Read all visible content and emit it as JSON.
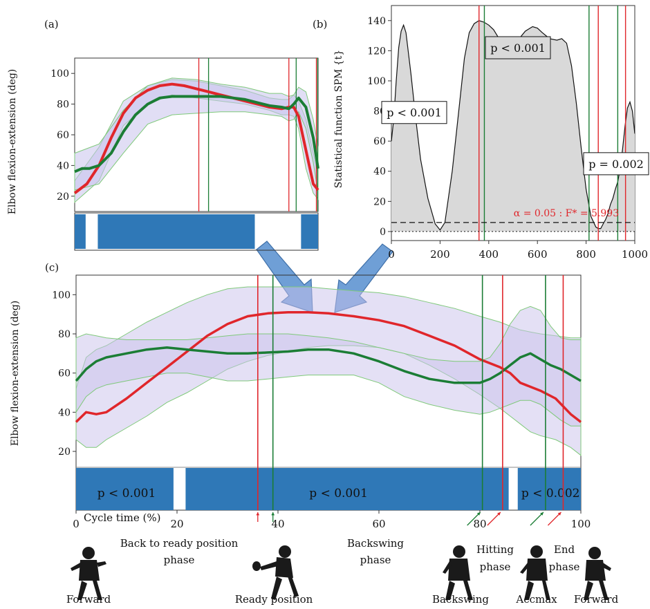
{
  "panel_labels": {
    "a": "(a)",
    "b": "(b)",
    "c": "(c)"
  },
  "colors": {
    "red": "#e0262b",
    "green": "#1b7d35",
    "band": "#c9c2ec",
    "band_stroke": "#7fc97a",
    "bar_blue": "#2f78b7",
    "spm_fill": "#d9d9d9",
    "arrow": "#6f9fd6"
  },
  "chart_data": [
    {
      "id": "a",
      "type": "line",
      "ylabel": "Elbow flexion-extension (deg)",
      "xlim": [
        0,
        100
      ],
      "ylim": [
        10,
        110
      ],
      "yticks": [
        20,
        40,
        60,
        80,
        100
      ],
      "grid": false,
      "series": [
        {
          "color_key": "red",
          "x": [
            0,
            5,
            10,
            15,
            20,
            25,
            30,
            35,
            40,
            45,
            50,
            55,
            60,
            65,
            70,
            75,
            80,
            85,
            88,
            90,
            92,
            95,
            98,
            100
          ],
          "y": [
            22,
            28,
            40,
            58,
            74,
            84,
            89,
            92,
            93,
            92,
            90,
            88,
            86,
            84,
            82,
            80,
            78,
            77,
            78,
            78,
            72,
            50,
            28,
            24
          ]
        },
        {
          "color_key": "green",
          "x": [
            0,
            3,
            6,
            10,
            15,
            20,
            25,
            30,
            35,
            40,
            45,
            50,
            55,
            60,
            65,
            70,
            75,
            80,
            85,
            88,
            90,
            92,
            95,
            98,
            100
          ],
          "y": [
            36,
            38,
            38,
            40,
            48,
            62,
            73,
            80,
            84,
            85,
            85,
            85,
            85,
            85,
            84,
            83,
            81,
            79,
            78,
            77,
            80,
            84,
            78,
            58,
            38
          ]
        }
      ],
      "bands": [
        {
          "color_key": "red",
          "x": [
            0,
            10,
            20,
            30,
            40,
            50,
            60,
            70,
            80,
            85,
            88,
            90,
            92,
            95,
            98,
            100
          ],
          "upper": [
            30,
            52,
            82,
            92,
            96,
            95,
            92,
            89,
            84,
            83,
            83,
            86,
            82,
            70,
            48,
            34
          ],
          "lower": [
            16,
            30,
            66,
            80,
            86,
            84,
            82,
            80,
            76,
            73,
            73,
            72,
            64,
            38,
            22,
            18
          ]
        },
        {
          "color_key": "green",
          "x": [
            0,
            10,
            20,
            30,
            40,
            50,
            60,
            70,
            80,
            85,
            88,
            90,
            92,
            95,
            98,
            100
          ],
          "upper": [
            48,
            54,
            76,
            92,
            97,
            96,
            93,
            91,
            87,
            87,
            85,
            86,
            91,
            88,
            70,
            52
          ],
          "lower": [
            24,
            28,
            48,
            67,
            73,
            74,
            75,
            75,
            73,
            72,
            69,
            70,
            75,
            64,
            42,
            22
          ]
        }
      ],
      "vlines": [
        {
          "x": 51,
          "color_key": "red"
        },
        {
          "x": 55,
          "color_key": "green"
        },
        {
          "x": 88,
          "color_key": "red"
        },
        {
          "x": 91,
          "color_key": "green"
        },
        {
          "x": 99.3,
          "color_key": "red"
        },
        {
          "x": 99.8,
          "color_key": "green"
        }
      ],
      "sig_blocks": [
        [
          0,
          4.5
        ],
        [
          9.5,
          74
        ],
        [
          93,
          100
        ]
      ],
      "sig_labels": []
    },
    {
      "id": "b",
      "type": "area",
      "ylabel": "Statistical function SPM {t}",
      "xlim": [
        0,
        1000
      ],
      "ylim": [
        -6,
        150
      ],
      "xticks": [
        0,
        200,
        400,
        600,
        800,
        1000
      ],
      "yticks": [
        0,
        20,
        40,
        60,
        80,
        100,
        120,
        140
      ],
      "grid": false,
      "x": [
        0,
        10,
        20,
        30,
        40,
        50,
        60,
        80,
        100,
        120,
        150,
        180,
        200,
        220,
        250,
        280,
        300,
        320,
        340,
        360,
        380,
        400,
        420,
        450,
        480,
        500,
        520,
        550,
        580,
        600,
        620,
        650,
        680,
        700,
        720,
        740,
        760,
        780,
        800,
        820,
        840,
        850,
        860,
        870,
        880,
        890,
        900,
        910,
        920,
        930,
        940,
        950,
        960,
        970,
        980,
        990,
        1000
      ],
      "y": [
        60,
        75,
        100,
        122,
        133,
        137,
        132,
        105,
        75,
        48,
        22,
        5,
        1,
        6,
        40,
        85,
        115,
        132,
        138,
        140,
        139,
        137,
        134,
        126,
        121,
        122,
        127,
        133,
        136,
        135,
        132,
        128,
        127,
        128,
        125,
        110,
        85,
        55,
        28,
        10,
        3,
        2,
        2,
        5,
        8,
        12,
        18,
        22,
        28,
        33,
        42,
        55,
        70,
        82,
        86,
        80,
        65
      ],
      "threshold": 5.993,
      "threshold_label": "α = 0.05 : F* = 5.993",
      "vlines": [
        {
          "x": 360,
          "color_key": "red"
        },
        {
          "x": 382,
          "color_key": "green"
        },
        {
          "x": 812,
          "color_key": "green"
        },
        {
          "x": 850,
          "color_key": "red"
        },
        {
          "x": 930,
          "color_key": "green"
        },
        {
          "x": 962,
          "color_key": "red"
        }
      ],
      "sig_labels": [
        {
          "text": "p < 0.001",
          "x": 0,
          "y": 79
        },
        {
          "text": "p < 0.001",
          "x": 400,
          "y": 122
        },
        {
          "text": "p = 0.002",
          "x": 940,
          "y": 45
        }
      ]
    },
    {
      "id": "c",
      "type": "line",
      "ylabel": "Elbow flexion-extension (deg)",
      "xlabel": "Cycle time (%)",
      "xlim": [
        0,
        100
      ],
      "ylim": [
        -10,
        110
      ],
      "xticks": [
        0,
        20,
        40,
        60,
        80,
        100
      ],
      "yticks": [
        20,
        40,
        60,
        80,
        100
      ],
      "grid": false,
      "series": [
        {
          "color_key": "red",
          "x": [
            0,
            2,
            4,
            6,
            10,
            14,
            18,
            22,
            26,
            30,
            34,
            38,
            42,
            46,
            50,
            55,
            60,
            65,
            70,
            75,
            80,
            84,
            86,
            88,
            90,
            92,
            95,
            98,
            100
          ],
          "y": [
            35,
            40,
            39,
            40,
            47,
            55,
            63,
            71,
            79,
            85,
            89,
            90.5,
            91,
            91,
            90.5,
            89,
            87,
            84,
            79,
            74,
            67,
            63,
            60,
            55,
            53,
            51,
            47,
            39,
            35
          ],
          "y_upper": [
            52,
            68,
            72,
            74,
            80,
            86,
            91,
            96,
            100,
            103,
            104,
            104,
            104,
            104,
            103,
            102,
            101,
            99,
            96,
            93,
            89,
            86,
            84,
            82,
            81,
            80,
            79,
            78,
            78
          ],
          "y_lower": [
            26,
            22,
            22,
            26,
            32,
            38,
            45,
            50,
            56,
            62,
            66,
            69,
            71,
            73,
            74,
            74,
            73,
            70,
            64,
            57,
            49,
            42,
            38,
            34,
            30,
            28,
            26,
            22,
            18
          ]
        },
        {
          "color_key": "green",
          "x": [
            0,
            2,
            4,
            6,
            10,
            14,
            18,
            22,
            26,
            30,
            34,
            38,
            42,
            46,
            50,
            55,
            60,
            65,
            70,
            75,
            80,
            82,
            84,
            86,
            88,
            90,
            92,
            94,
            96,
            98,
            100
          ],
          "y": [
            56,
            62,
            66,
            68,
            70,
            72,
            73,
            72,
            71,
            70,
            70,
            70.5,
            71,
            72,
            72,
            70,
            66,
            61,
            57,
            55,
            55,
            57,
            60,
            64,
            68,
            70,
            67,
            64,
            62,
            59,
            56
          ],
          "y_upper": [
            78,
            80,
            79,
            78,
            77,
            77,
            77,
            77,
            78,
            79,
            80,
            80,
            80,
            79,
            78,
            76,
            73,
            70,
            67,
            66,
            66,
            68,
            75,
            85,
            92,
            94,
            92,
            84,
            78,
            77,
            77
          ],
          "y_lower": [
            40,
            48,
            52,
            54,
            56,
            58,
            60,
            60,
            58,
            56,
            56,
            57,
            58,
            59,
            59,
            59,
            55,
            48,
            44,
            41,
            39,
            40,
            42,
            44,
            46,
            46,
            44,
            40,
            36,
            33,
            33
          ]
        }
      ],
      "vlines": [
        {
          "x": 36,
          "color_key": "red"
        },
        {
          "x": 39,
          "color_key": "green"
        },
        {
          "x": 80.5,
          "color_key": "green"
        },
        {
          "x": 84.5,
          "color_key": "red"
        },
        {
          "x": 93,
          "color_key": "green"
        },
        {
          "x": 96.5,
          "color_key": "red"
        }
      ],
      "sig_blocks": [
        [
          0,
          19.3
        ],
        [
          21.7,
          85.7
        ],
        [
          87.5,
          100
        ]
      ],
      "sig_labels": [
        {
          "text": "p < 0.001",
          "x": 10
        },
        {
          "text": "p < 0.001",
          "x": 52
        },
        {
          "text": "p < 0.002",
          "x": 94
        }
      ],
      "event_arrows": [
        {
          "x": 36,
          "color_key": "red"
        },
        {
          "x": 39,
          "color_key": "green"
        },
        {
          "x": 80.5,
          "color_key": "green"
        },
        {
          "x": 84.5,
          "color_key": "red"
        },
        {
          "x": 93,
          "color_key": "green"
        },
        {
          "x": 96.5,
          "color_key": "red"
        }
      ]
    }
  ],
  "phase_labels": [
    {
      "key": "back",
      "lines": [
        "Back to ready position",
        "phase"
      ]
    },
    {
      "key": "backswing",
      "lines": [
        "Backswing",
        "phase"
      ]
    },
    {
      "key": "hitting",
      "lines": [
        "Hitting",
        "phase"
      ]
    },
    {
      "key": "end",
      "lines": [
        "End",
        "phase"
      ]
    }
  ],
  "event_labels": [
    "Forward",
    "Ready position",
    "Backswing",
    "Accmax",
    "Forward"
  ],
  "figures": [
    {
      "name": "player-forward-1",
      "pose": "forward"
    },
    {
      "name": "player-ready",
      "pose": "ready"
    },
    {
      "name": "player-backswing",
      "pose": "backswing"
    },
    {
      "name": "player-accmax",
      "pose": "accmax"
    },
    {
      "name": "player-forward-2",
      "pose": "forward"
    }
  ]
}
